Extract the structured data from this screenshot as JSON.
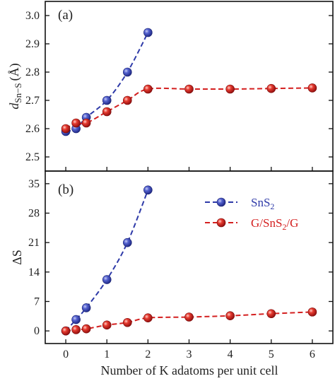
{
  "chart_data": [
    {
      "type": "line",
      "panel_label": "(a)",
      "ylabel_main": "d",
      "ylabel_sub": "Sn−S",
      "ylabel_unit": "(Å)",
      "xlim": [
        -0.5,
        6.5
      ],
      "ylim": [
        2.45,
        3.05
      ],
      "yticks": [
        "2.5",
        "2.6",
        "2.7",
        "2.8",
        "2.9",
        "3.0"
      ],
      "x": [
        0,
        0.25,
        0.5,
        1,
        1.5,
        2,
        3,
        4,
        5,
        6
      ],
      "series": [
        {
          "color": "#2e3aa8",
          "x": [
            0,
            0.25,
            0.5,
            1,
            1.5,
            2
          ],
          "values": [
            2.59,
            2.6,
            2.64,
            2.7,
            2.8,
            2.94
          ]
        },
        {
          "color": "#d42020",
          "x": [
            0,
            0.25,
            0.5,
            1,
            1.5,
            2,
            3,
            4,
            5,
            6
          ],
          "values": [
            2.6,
            2.62,
            2.62,
            2.66,
            2.7,
            2.74,
            2.74,
            2.74,
            2.742,
            2.744
          ]
        }
      ]
    },
    {
      "type": "line",
      "panel_label": "(b)",
      "ylabel": "ΔS",
      "xlabel": "Number of K adatoms per unit cell",
      "xlim": [
        -0.5,
        6.5
      ],
      "ylim": [
        -3,
        38
      ],
      "yticks": [
        "0",
        "7",
        "14",
        "21",
        "28",
        "35"
      ],
      "xticks": [
        "0",
        "1",
        "2",
        "3",
        "4",
        "5",
        "6"
      ],
      "series": [
        {
          "name_main": "SnS",
          "name_sub": "2",
          "name_rest": "",
          "color": "#2e3aa8",
          "x": [
            0,
            0.25,
            0.5,
            1,
            1.5,
            2
          ],
          "values": [
            0,
            2.7,
            5.5,
            12.2,
            21.0,
            33.5
          ]
        },
        {
          "name_main": "G/SnS",
          "name_sub": "2",
          "name_rest": "/G",
          "color": "#d42020",
          "x": [
            0,
            0.25,
            0.5,
            1,
            1.5,
            2,
            3,
            4,
            5,
            6
          ],
          "values": [
            0,
            0.3,
            0.5,
            1.4,
            2.0,
            3.1,
            3.3,
            3.6,
            4.1,
            4.5
          ]
        }
      ]
    }
  ]
}
